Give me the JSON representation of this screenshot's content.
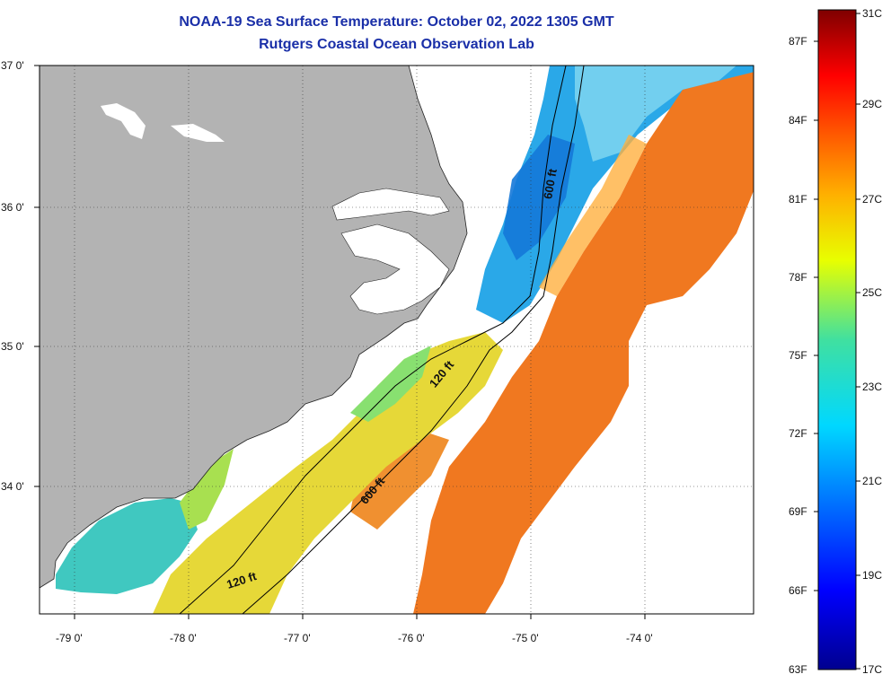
{
  "title": "NOAA-19 Sea Surface Temperature:  October 02, 2022 1305 GMT",
  "subtitle": "Rutgers Coastal Ocean Observation Lab",
  "map": {
    "lat_labels": [
      {
        "value": 37,
        "text": "37 0'"
      },
      {
        "value": 36,
        "text": "36 0'"
      },
      {
        "value": 35,
        "text": "35 0'"
      },
      {
        "value": 34,
        "text": "34 0'"
      }
    ],
    "lon_labels": [
      {
        "value": -79,
        "text": "-79 0'"
      },
      {
        "value": -78,
        "text": "-78 0'"
      },
      {
        "value": -77,
        "text": "-77 0'"
      },
      {
        "value": -76,
        "text": "-76 0'"
      },
      {
        "value": -75,
        "text": "-75 0'"
      },
      {
        "value": -74,
        "text": "-74 0'"
      }
    ],
    "contour_labels": [
      {
        "text": "600 ft"
      },
      {
        "text": "120 ft"
      },
      {
        "text": "600 ft"
      },
      {
        "text": "120 ft"
      }
    ],
    "colors": {
      "land": "#b3b3b3",
      "water_no_data": "#ffffff",
      "cold_shelf": "#2aa8e8",
      "warm_gulf_stream": "#f07820"
    }
  },
  "colorbar": {
    "min_c": 17,
    "max_c": 31,
    "celsius_labels": [
      "31C",
      "29C",
      "27C",
      "25C",
      "23C",
      "21C",
      "19C",
      "17C"
    ],
    "fahrenheit_labels": [
      "87F",
      "84F",
      "81F",
      "78F",
      "75F",
      "72F",
      "69F",
      "66F",
      "63F"
    ]
  }
}
